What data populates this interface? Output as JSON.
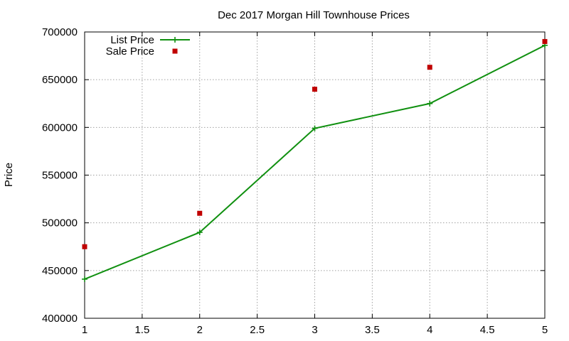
{
  "chart_data": {
    "type": "line",
    "title": "Dec 2017 Morgan Hill Townhouse Prices",
    "xlabel": "",
    "ylabel": "Price",
    "xlim": [
      1,
      5
    ],
    "ylim": [
      400000,
      700000
    ],
    "x_ticks": [
      1,
      1.5,
      2,
      2.5,
      3,
      3.5,
      4,
      4.5,
      5
    ],
    "x_tick_labels": [
      "1",
      "1.5",
      "2",
      "2.5",
      "3",
      "3.5",
      "4",
      "4.5",
      "5"
    ],
    "y_ticks": [
      400000,
      450000,
      500000,
      550000,
      600000,
      650000,
      700000
    ],
    "y_tick_labels": [
      "400000",
      "450000",
      "500000",
      "550000",
      "600000",
      "650000",
      "700000"
    ],
    "grid": true,
    "legend_position": "top-left",
    "series": [
      {
        "name": "List Price",
        "style": "line-with-plus-markers",
        "color": "#109010",
        "x": [
          1,
          2,
          3,
          4,
          5
        ],
        "y": [
          441000,
          490000,
          599000,
          625000,
          686000
        ]
      },
      {
        "name": "Sale Price",
        "style": "square-markers",
        "color": "#c00000",
        "x": [
          1,
          2,
          3,
          4,
          5
        ],
        "y": [
          475000,
          510000,
          640000,
          663000,
          690000
        ]
      }
    ]
  }
}
